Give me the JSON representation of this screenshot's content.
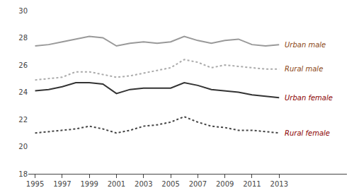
{
  "chart_data": {
    "type": "line",
    "x": [
      1995,
      1996,
      1997,
      1998,
      1999,
      2000,
      2001,
      2002,
      2003,
      2004,
      2005,
      2006,
      2007,
      2008,
      2009,
      2010,
      2011,
      2012,
      2013
    ],
    "series": [
      {
        "name": "Urban male",
        "color": "#999999",
        "line_style": "solid",
        "values": [
          27.4,
          27.5,
          27.7,
          27.9,
          28.1,
          28.0,
          27.4,
          27.6,
          27.7,
          27.6,
          27.7,
          28.1,
          27.8,
          27.6,
          27.8,
          27.9,
          27.5,
          27.4,
          27.5
        ]
      },
      {
        "name": "Rural male",
        "color": "#aaaaaa",
        "line_style": "dotted",
        "values": [
          24.9,
          25.0,
          25.1,
          25.5,
          25.5,
          25.3,
          25.1,
          25.2,
          25.4,
          25.6,
          25.8,
          26.4,
          26.2,
          25.8,
          26.0,
          25.9,
          25.8,
          25.7,
          25.7
        ]
      },
      {
        "name": "Urban female",
        "color": "#333333",
        "line_style": "solid",
        "values": [
          24.1,
          24.2,
          24.4,
          24.7,
          24.7,
          24.6,
          23.9,
          24.2,
          24.3,
          24.3,
          24.3,
          24.7,
          24.5,
          24.2,
          24.1,
          24.0,
          23.8,
          23.7,
          23.6
        ]
      },
      {
        "name": "Rural female",
        "color": "#444444",
        "line_style": "dotted",
        "values": [
          21.0,
          21.1,
          21.2,
          21.3,
          21.5,
          21.3,
          21.0,
          21.2,
          21.5,
          21.6,
          21.8,
          22.2,
          21.8,
          21.5,
          21.4,
          21.2,
          21.2,
          21.1,
          21.0
        ]
      }
    ],
    "annotations": [
      {
        "text": "Urban male",
        "x": 2013.3,
        "y": 27.5,
        "color": "#8B4513"
      },
      {
        "text": "Rural male",
        "x": 2013.3,
        "y": 25.7,
        "color": "#8B4513"
      },
      {
        "text": "Urban female",
        "x": 2013.3,
        "y": 23.6,
        "color": "#8B0000"
      },
      {
        "text": "Rural female",
        "x": 2013.3,
        "y": 21.0,
        "color": "#8B0000"
      }
    ],
    "xlim": [
      1994.5,
      2018
    ],
    "xticks": [
      1995,
      1997,
      1999,
      2001,
      2003,
      2005,
      2007,
      2009,
      2011,
      2013
    ],
    "ylim": [
      18,
      30
    ],
    "yticks": [
      18,
      20,
      22,
      24,
      26,
      28,
      30
    ],
    "grid": false
  }
}
